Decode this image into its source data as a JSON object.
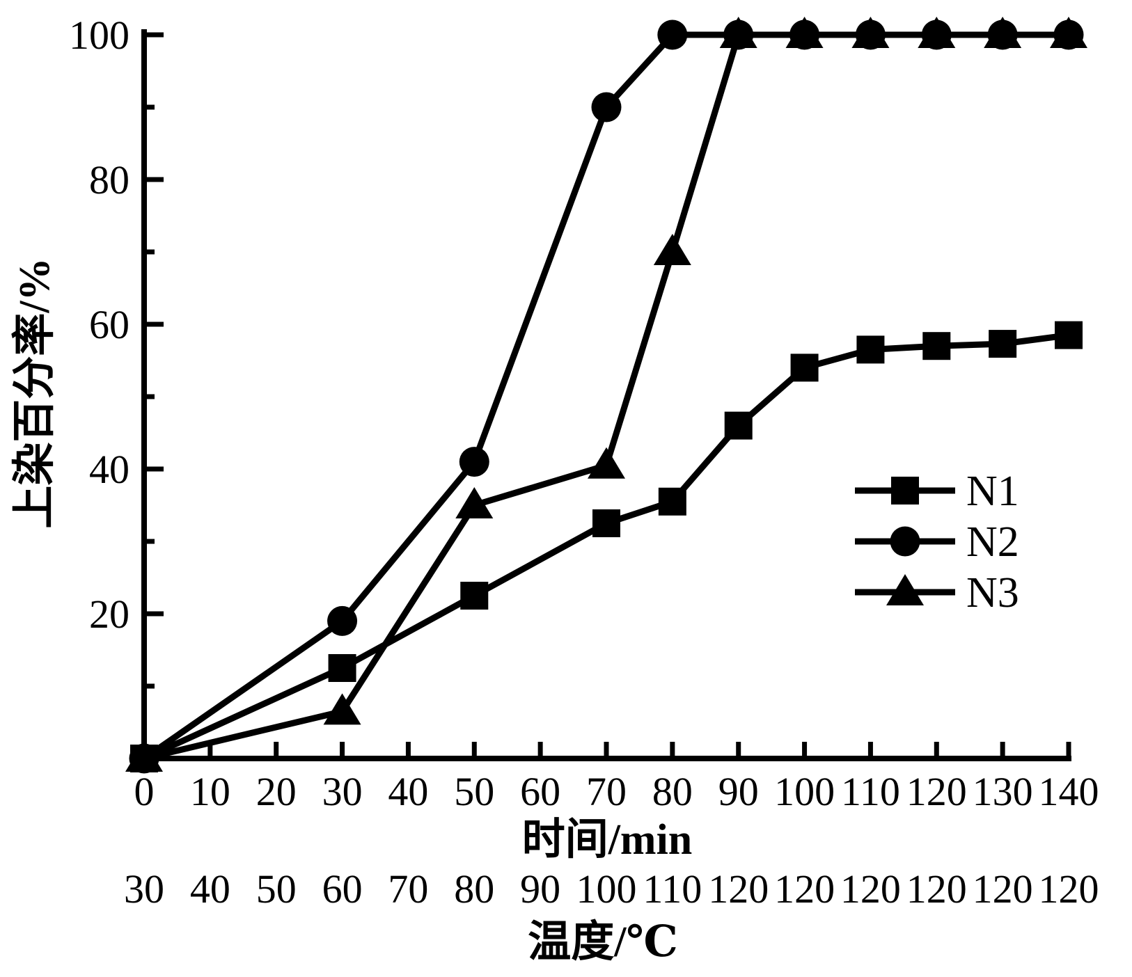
{
  "chart_data": {
    "type": "line",
    "title": "",
    "xlabel": "时间/min",
    "x2label": "温度/℃",
    "ylabel": "上染百分率/%",
    "xlim": [
      0,
      140
    ],
    "ylim": [
      0,
      100
    ],
    "grid": false,
    "legend": {
      "entries": [
        "N1",
        "N2",
        "N3"
      ],
      "position": "right-middle"
    },
    "x_tick_values": [
      0,
      10,
      20,
      30,
      40,
      50,
      60,
      70,
      80,
      90,
      100,
      110,
      120,
      130,
      140
    ],
    "x_tick_labels": [
      "0",
      "10",
      "20",
      "30",
      "40",
      "50",
      "60",
      "70",
      "80",
      "90",
      "100",
      "110",
      "120",
      "130",
      "140"
    ],
    "x2_tick_labels": [
      "30",
      "40",
      "50",
      "60",
      "70",
      "80",
      "90",
      "100",
      "110",
      "120",
      "120",
      "120",
      "120",
      "120",
      "120"
    ],
    "y_major_tick_values": [
      20,
      40,
      60,
      80,
      100
    ],
    "y_major_tick_labels": [
      "20",
      "40",
      "60",
      "80",
      "100"
    ],
    "y_minor_tick_values": [
      10,
      30,
      50,
      70,
      90
    ],
    "x": [
      0,
      30,
      50,
      70,
      80,
      90,
      100,
      110,
      120,
      130,
      140
    ],
    "series": [
      {
        "name": "N1",
        "marker": "square",
        "values": [
          0,
          12.5,
          22.5,
          32.5,
          35.5,
          46,
          54,
          56.5,
          57,
          57.3,
          58.5
        ]
      },
      {
        "name": "N2",
        "marker": "circle",
        "values": [
          0,
          19,
          41,
          90,
          100,
          100,
          100,
          100,
          100,
          100,
          100
        ]
      },
      {
        "name": "N3",
        "marker": "triangle",
        "values": [
          0,
          6.5,
          35,
          40.5,
          70,
          100,
          100,
          100,
          100,
          100,
          100
        ]
      }
    ],
    "colors": {
      "foreground": "#000000",
      "background": "#ffffff"
    }
  }
}
